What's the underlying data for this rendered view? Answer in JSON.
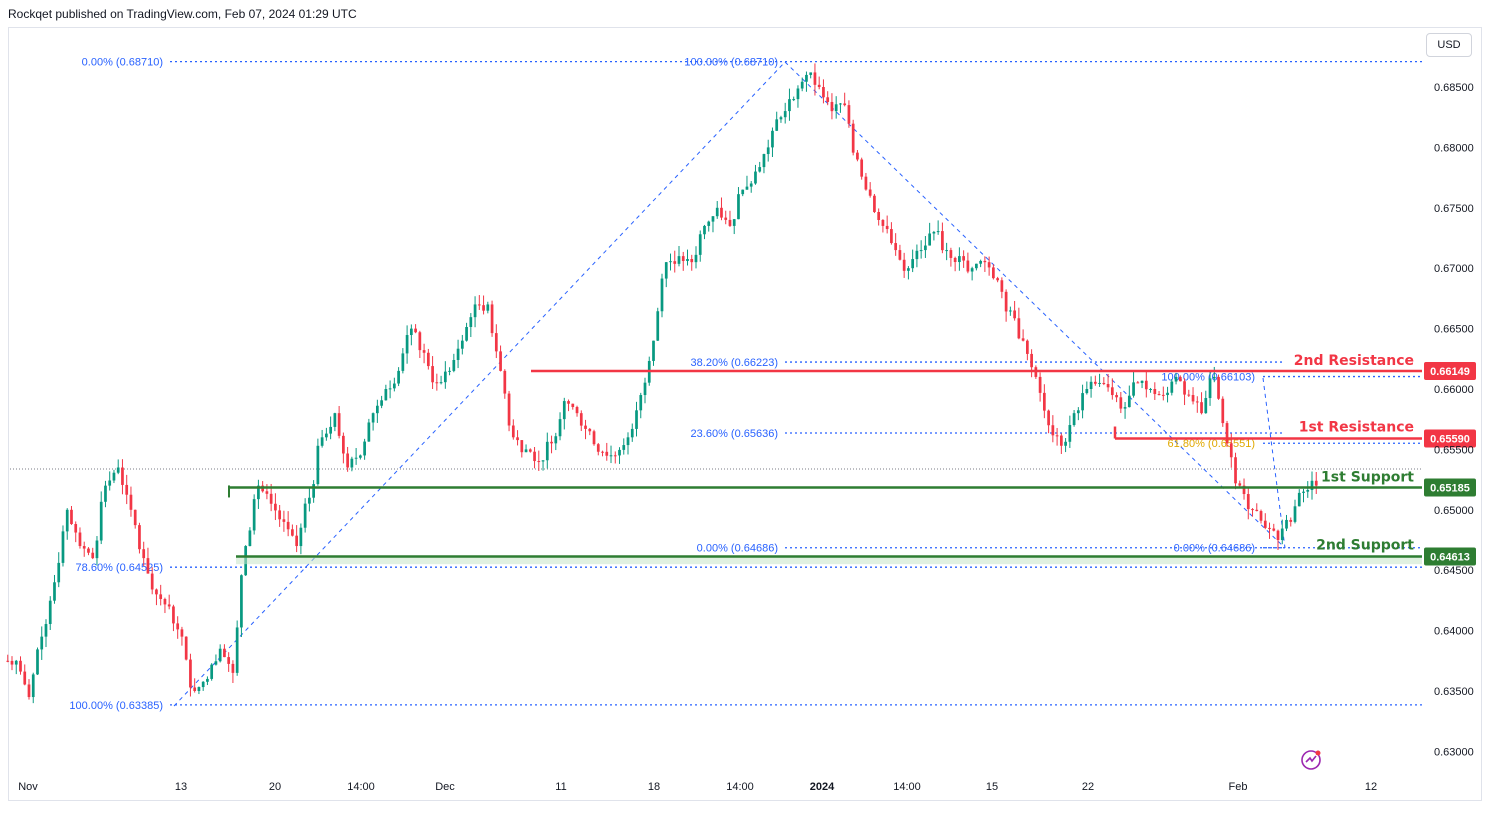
{
  "header": {
    "publisher_line": "Rockqet published on TradingView.com, Feb 07, 2024 01:29 UTC"
  },
  "currency_button": "USD",
  "chart_data": {
    "type": "candlestick",
    "currency": "USD",
    "ylim": [
      0.6295,
      0.6885
    ],
    "y_ticks": [
      "0.68500",
      "0.68000",
      "0.67500",
      "0.67000",
      "0.66500",
      "0.66000",
      "0.65500",
      "0.65000",
      "0.64500",
      "0.64000",
      "0.63500",
      "0.63000"
    ],
    "x_ticks": [
      {
        "label": "Nov",
        "bold": false
      },
      {
        "label": "13",
        "bold": false
      },
      {
        "label": "20",
        "bold": false
      },
      {
        "label": "14:00",
        "bold": false
      },
      {
        "label": "Dec",
        "bold": false
      },
      {
        "label": "11",
        "bold": false
      },
      {
        "label": "18",
        "bold": false
      },
      {
        "label": "14:00",
        "bold": false
      },
      {
        "label": "2024",
        "bold": true
      },
      {
        "label": "14:00",
        "bold": false
      },
      {
        "label": "15",
        "bold": false
      },
      {
        "label": "22",
        "bold": false
      },
      {
        "label": "Feb",
        "bold": false
      },
      {
        "label": "12",
        "bold": false
      }
    ],
    "price_path": [
      0.6375,
      0.6345,
      0.6395,
      0.644,
      0.65,
      0.647,
      0.646,
      0.652,
      0.6535,
      0.65,
      0.646,
      0.643,
      0.642,
      0.6395,
      0.635,
      0.636,
      0.6385,
      0.6365,
      0.647,
      0.652,
      0.6505,
      0.649,
      0.647,
      0.651,
      0.656,
      0.658,
      0.6535,
      0.6545,
      0.658,
      0.66,
      0.6615,
      0.665,
      0.663,
      0.6605,
      0.6615,
      0.664,
      0.667,
      0.667,
      0.6615,
      0.656,
      0.655,
      0.654,
      0.6555,
      0.659,
      0.658,
      0.6565,
      0.6548,
      0.6545,
      0.656,
      0.6595,
      0.664,
      0.6705,
      0.671,
      0.6705,
      0.6735,
      0.675,
      0.6735,
      0.6765,
      0.678,
      0.68,
      0.6825,
      0.684,
      0.686,
      0.685,
      0.683,
      0.6835,
      0.679,
      0.676,
      0.6735,
      0.6715,
      0.67,
      0.6715,
      0.673,
      0.6715,
      0.671,
      0.67,
      0.6705,
      0.669,
      0.6665,
      0.664,
      0.661,
      0.657,
      0.6553,
      0.658,
      0.66,
      0.6605,
      0.6595,
      0.6585,
      0.6605,
      0.66,
      0.6595,
      0.661,
      0.6595,
      0.658,
      0.661,
      0.6555,
      0.652,
      0.65,
      0.6485,
      0.6475,
      0.649,
      0.6515,
      0.652
    ],
    "price_path_note": "Closing-price path of the AUD/USD candles, left to right",
    "fib_upper_left": [
      {
        "label": "0.00% (0.68710)",
        "value": 0.6871
      },
      {
        "label": "78.60% (0.64525)",
        "value": 0.64525
      },
      {
        "label": "100.00% (0.63385)",
        "value": 0.63385
      }
    ],
    "fib_mid": [
      {
        "label": "100.00% (0.68710)",
        "value": 0.6871
      },
      {
        "label": "38.20% (0.66223)",
        "value": 0.66223
      },
      {
        "label": "23.60% (0.65636)",
        "value": 0.65636
      },
      {
        "label": "0.00% (0.64686)",
        "value": 0.64686
      }
    ],
    "fib_right": [
      {
        "label": "100.00% (0.66103)",
        "value": 0.66103
      },
      {
        "label": "61.80% (0.65551)",
        "value": 0.65551
      },
      {
        "label": "0.00% (0.64686)",
        "value": 0.64686
      }
    ],
    "levels": [
      {
        "name": "2nd Resistance",
        "tag": "0.66149",
        "value": 0.66149,
        "color": "#f23645"
      },
      {
        "name": "1st Resistance",
        "tag": "0.65590",
        "value": 0.6559,
        "color": "#f23645"
      },
      {
        "name": "1st Support",
        "tag": "0.65185",
        "value": 0.65185,
        "color": "#2e7d32"
      },
      {
        "name": "2nd Support",
        "tag": "0.64613",
        "value": 0.64613,
        "color": "#2e7d32"
      }
    ],
    "colors": {
      "up": "#089981",
      "down": "#f23645",
      "fib": "#2962ff",
      "fib_gold": "#e0a800"
    }
  }
}
